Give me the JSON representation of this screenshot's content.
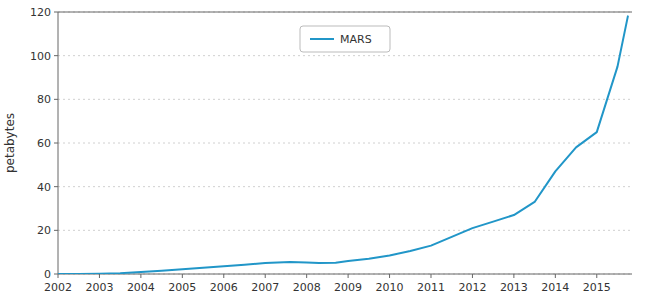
{
  "chart_data": {
    "type": "line",
    "x": [
      2002,
      2002.5,
      2003,
      2003.5,
      2004,
      2004.5,
      2005,
      2005.5,
      2006,
      2006.5,
      2007,
      2007.3,
      2007.6,
      2008,
      2008.3,
      2008.7,
      2009,
      2009.5,
      2010,
      2010.5,
      2011,
      2011.5,
      2012,
      2012.5,
      2013,
      2013.5,
      2014,
      2014.5,
      2015,
      2015.5,
      2015.75
    ],
    "series": [
      {
        "name": "MARS",
        "color": "#2196c8",
        "values": [
          0.02,
          0.05,
          0.15,
          0.4,
          0.9,
          1.5,
          2.2,
          2.9,
          3.5,
          4.2,
          5.0,
          5.3,
          5.5,
          5.3,
          5.0,
          5.2,
          6.0,
          7.0,
          8.5,
          10.5,
          13.0,
          17.0,
          21.0,
          24.0,
          27.0,
          33.0,
          47.0,
          58.0,
          65.0,
          95.0,
          118.0
        ]
      }
    ],
    "ylabel": "petabytes",
    "xlim": [
      2002,
      2015.85
    ],
    "ylim": [
      0,
      120
    ],
    "xticks": [
      2002,
      2003,
      2004,
      2005,
      2006,
      2007,
      2008,
      2009,
      2010,
      2011,
      2012,
      2013,
      2014,
      2015
    ],
    "yticks": [
      0,
      20,
      40,
      60,
      80,
      100,
      120
    ],
    "grid": true,
    "legend": "top"
  }
}
